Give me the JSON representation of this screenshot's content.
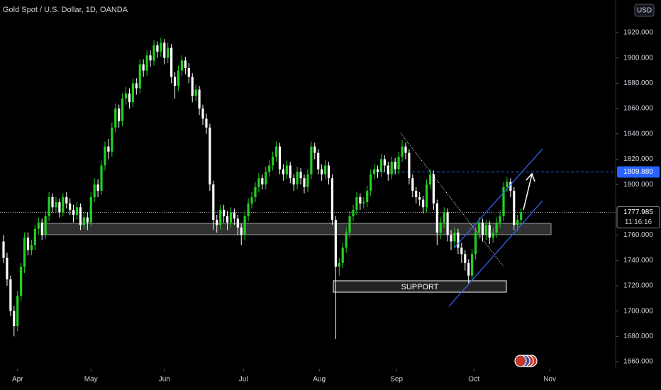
{
  "chart_data": {
    "type": "candlestick",
    "title": "Gold Spot / U.S. Dollar, 1D, OANDA",
    "currency": "USD",
    "up_color": "#22d022",
    "down_color": "#ffffff",
    "open": [
      1755,
      1742,
      1725,
      1700,
      1688,
      1712,
      1735,
      1758,
      1748,
      1752,
      1765,
      1770,
      1760,
      1775,
      1790,
      1782,
      1786,
      1778,
      1790,
      1785,
      1780,
      1776,
      1782,
      1768,
      1774,
      1770,
      1790,
      1800,
      1795,
      1815,
      1830,
      1826,
      1845,
      1860,
      1850,
      1868,
      1872,
      1865,
      1880,
      1876,
      1895,
      1890,
      1902,
      1898,
      1910,
      1905,
      1912,
      1900,
      1908,
      1885,
      1878,
      1890,
      1898,
      1892,
      1885,
      1870,
      1875,
      1860,
      1852,
      1845,
      1800,
      1772,
      1768,
      1780,
      1775,
      1770,
      1778,
      1773,
      1766,
      1760,
      1775,
      1785,
      1790,
      1798,
      1805,
      1800,
      1810,
      1815,
      1822,
      1830,
      1812,
      1808,
      1815,
      1805,
      1800,
      1810,
      1805,
      1798,
      1808,
      1830,
      1825,
      1812,
      1808,
      1815,
      1805,
      1772,
      1735,
      1738,
      1750,
      1762,
      1775,
      1780,
      1790,
      1785,
      1786,
      1795,
      1808,
      1812,
      1810,
      1820,
      1815,
      1808,
      1818,
      1812,
      1822,
      1830,
      1825,
      1805,
      1795,
      1790,
      1788,
      1782,
      1800,
      1808,
      1785,
      1762,
      1770,
      1778,
      1760,
      1755,
      1762,
      1750,
      1745,
      1738,
      1728,
      1745,
      1762,
      1770,
      1760,
      1768,
      1758,
      1762,
      1770,
      1775,
      1798,
      1802,
      1795,
      1768,
      1772
    ],
    "high": [
      1760,
      1746,
      1728,
      1704,
      1716,
      1738,
      1762,
      1762,
      1756,
      1768,
      1774,
      1773,
      1779,
      1794,
      1793,
      1790,
      1789,
      1793,
      1794,
      1789,
      1784,
      1786,
      1785,
      1778,
      1778,
      1794,
      1805,
      1804,
      1819,
      1834,
      1836,
      1849,
      1864,
      1863,
      1872,
      1877,
      1876,
      1884,
      1884,
      1899,
      1899,
      1906,
      1906,
      1914,
      1913,
      1916,
      1915,
      1912,
      1911,
      1889,
      1894,
      1902,
      1901,
      1896,
      1888,
      1879,
      1878,
      1863,
      1856,
      1848,
      1803,
      1776,
      1784,
      1784,
      1779,
      1782,
      1781,
      1776,
      1769,
      1779,
      1789,
      1794,
      1802,
      1809,
      1808,
      1814,
      1819,
      1826,
      1834,
      1833,
      1816,
      1819,
      1818,
      1808,
      1814,
      1813,
      1808,
      1812,
      1834,
      1833,
      1828,
      1816,
      1819,
      1818,
      1808,
      1775,
      1742,
      1754,
      1766,
      1779,
      1784,
      1794,
      1793,
      1790,
      1799,
      1812,
      1816,
      1815,
      1824,
      1823,
      1818,
      1822,
      1821,
      1826,
      1835,
      1833,
      1828,
      1808,
      1798,
      1794,
      1791,
      1804,
      1812,
      1811,
      1788,
      1774,
      1782,
      1781,
      1764,
      1766,
      1765,
      1754,
      1748,
      1741,
      1749,
      1766,
      1774,
      1773,
      1772,
      1771,
      1766,
      1774,
      1779,
      1802,
      1806,
      1805,
      1798,
      1776,
      1781
    ],
    "low": [
      1738,
      1720,
      1696,
      1680,
      1684,
      1708,
      1730,
      1744,
      1744,
      1748,
      1760,
      1756,
      1757,
      1771,
      1778,
      1778,
      1774,
      1775,
      1781,
      1776,
      1770,
      1772,
      1764,
      1765,
      1764,
      1767,
      1786,
      1790,
      1792,
      1811,
      1820,
      1822,
      1841,
      1845,
      1846,
      1863,
      1860,
      1861,
      1871,
      1872,
      1885,
      1886,
      1893,
      1894,
      1900,
      1901,
      1895,
      1896,
      1880,
      1868,
      1874,
      1886,
      1887,
      1880,
      1865,
      1866,
      1855,
      1847,
      1840,
      1795,
      1764,
      1762,
      1764,
      1770,
      1764,
      1766,
      1768,
      1760,
      1752,
      1756,
      1771,
      1781,
      1786,
      1794,
      1796,
      1796,
      1806,
      1811,
      1818,
      1808,
      1803,
      1804,
      1801,
      1795,
      1796,
      1800,
      1793,
      1794,
      1804,
      1820,
      1808,
      1803,
      1804,
      1800,
      1768,
      1678,
      1728,
      1734,
      1746,
      1758,
      1771,
      1776,
      1780,
      1781,
      1782,
      1791,
      1804,
      1805,
      1806,
      1810,
      1803,
      1804,
      1808,
      1808,
      1818,
      1820,
      1800,
      1790,
      1785,
      1783,
      1777,
      1778,
      1796,
      1780,
      1752,
      1757,
      1766,
      1755,
      1748,
      1750,
      1745,
      1738,
      1732,
      1722,
      1724,
      1741,
      1757,
      1755,
      1756,
      1753,
      1754,
      1758,
      1766,
      1771,
      1794,
      1790,
      1764,
      1763,
      1768
    ],
    "close": [
      1742,
      1725,
      1700,
      1688,
      1712,
      1735,
      1758,
      1748,
      1752,
      1765,
      1770,
      1760,
      1775,
      1790,
      1782,
      1786,
      1778,
      1790,
      1785,
      1780,
      1776,
      1782,
      1768,
      1774,
      1770,
      1790,
      1800,
      1795,
      1815,
      1830,
      1826,
      1845,
      1860,
      1850,
      1868,
      1872,
      1865,
      1880,
      1876,
      1895,
      1890,
      1902,
      1898,
      1910,
      1905,
      1912,
      1900,
      1908,
      1885,
      1878,
      1890,
      1898,
      1892,
      1885,
      1870,
      1875,
      1860,
      1852,
      1845,
      1800,
      1772,
      1768,
      1780,
      1775,
      1770,
      1778,
      1773,
      1766,
      1760,
      1775,
      1785,
      1790,
      1798,
      1805,
      1800,
      1810,
      1815,
      1822,
      1830,
      1812,
      1808,
      1815,
      1805,
      1800,
      1810,
      1805,
      1798,
      1808,
      1830,
      1825,
      1812,
      1808,
      1815,
      1805,
      1772,
      1735,
      1738,
      1750,
      1762,
      1775,
      1780,
      1790,
      1785,
      1786,
      1795,
      1808,
      1812,
      1810,
      1820,
      1815,
      1808,
      1818,
      1812,
      1822,
      1830,
      1825,
      1805,
      1795,
      1790,
      1788,
      1782,
      1800,
      1808,
      1785,
      1762,
      1770,
      1778,
      1760,
      1755,
      1762,
      1750,
      1745,
      1738,
      1728,
      1745,
      1762,
      1770,
      1760,
      1768,
      1758,
      1762,
      1770,
      1775,
      1798,
      1802,
      1795,
      1768,
      1772,
      1777.985
    ],
    "ylim": [
      1654.4,
      1945.8
    ],
    "yticks": [
      {
        "value": 1660,
        "label": "1660.000"
      },
      {
        "value": 1680,
        "label": "1680.000"
      },
      {
        "value": 1700,
        "label": "1700.000"
      },
      {
        "value": 1720,
        "label": "1720.000"
      },
      {
        "value": 1740,
        "label": "1740.000"
      },
      {
        "value": 1760,
        "label": "1760.000"
      },
      {
        "value": 1780,
        "label": "1780.000"
      },
      {
        "value": 1800,
        "label": "1800.000"
      },
      {
        "value": 1820,
        "label": "1820.000"
      },
      {
        "value": 1840,
        "label": "1840.000"
      },
      {
        "value": 1860,
        "label": "1860.000"
      },
      {
        "value": 1880,
        "label": "1880.000"
      },
      {
        "value": 1900,
        "label": "1900.000"
      },
      {
        "value": 1920,
        "label": "1920.000"
      }
    ],
    "xticks": [
      {
        "value": 4,
        "label": "Apr"
      },
      {
        "value": 25,
        "label": "May"
      },
      {
        "value": 46,
        "label": "Jun"
      },
      {
        "value": 68.6,
        "label": "Jul"
      },
      {
        "value": 90.3,
        "label": "Aug"
      },
      {
        "value": 112.4,
        "label": "Sep"
      },
      {
        "value": 134.5,
        "label": "Oct"
      },
      {
        "value": 156.2,
        "label": "Nov"
      }
    ],
    "last_price": {
      "value": 1777.985,
      "label": "1777.985"
    },
    "countdown": "11:16:16",
    "level": {
      "value": 1809.88,
      "label": "1809.880"
    },
    "annotation": "SUPPORT"
  }
}
